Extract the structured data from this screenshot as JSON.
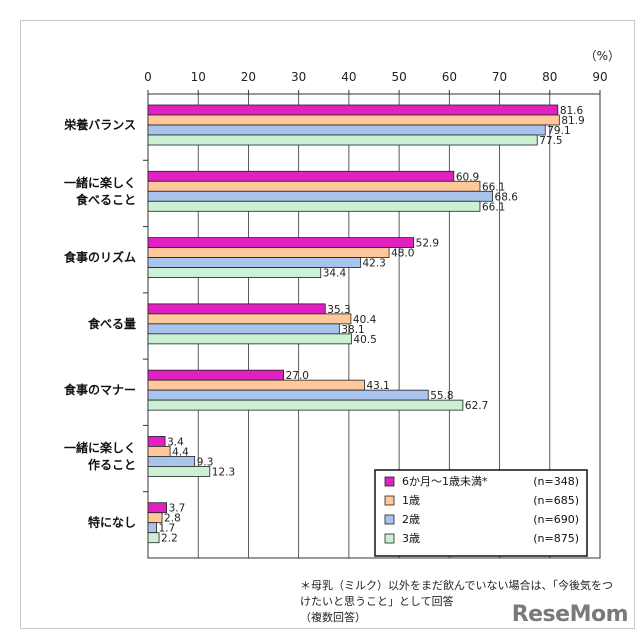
{
  "chart_data": {
    "type": "bar",
    "orientation": "horizontal",
    "unit_label": "（%）",
    "xlim": [
      0,
      90
    ],
    "xticks": [
      "0",
      "10",
      "20",
      "30",
      "40",
      "50",
      "60",
      "70",
      "80",
      "90"
    ],
    "grid": true,
    "legend_position": "bottom-right",
    "categories": [
      [
        "栄養バランス"
      ],
      [
        "一緒に楽しく",
        "食べること"
      ],
      [
        "食事のリズム"
      ],
      [
        "食べる量"
      ],
      [
        "食事のマナー"
      ],
      [
        "一緒に楽しく",
        "作ること"
      ],
      [
        "特になし"
      ]
    ],
    "series": [
      {
        "name": "6か月～1歳未満*",
        "n": "(n=348)",
        "color": "#e020c0",
        "values": [
          81.6,
          60.9,
          52.9,
          35.3,
          27.0,
          3.4,
          3.7
        ],
        "labels": [
          "81.6",
          "60.9",
          "52.9",
          "35.3",
          "27.0",
          "3.4",
          "3.7"
        ]
      },
      {
        "name": "1歳",
        "n": "(n=685)",
        "color": "#ffc89a",
        "values": [
          81.9,
          66.1,
          48.0,
          40.4,
          43.1,
          4.4,
          2.8
        ],
        "labels": [
          "81.9",
          "66.1",
          "48.0",
          "40.4",
          "43.1",
          "4.4",
          "2.8"
        ]
      },
      {
        "name": "2歳",
        "n": "(n=690)",
        "color": "#a8c4ec",
        "values": [
          79.1,
          68.6,
          42.3,
          38.1,
          55.8,
          9.3,
          1.7
        ],
        "labels": [
          "79.1",
          "68.6",
          "42.3",
          "38.1",
          "55.8",
          "9.3",
          "1.7"
        ]
      },
      {
        "name": "3歳",
        "n": "(n=875)",
        "color": "#ccf0d4",
        "values": [
          77.5,
          66.1,
          34.4,
          40.5,
          62.7,
          12.3,
          2.2
        ],
        "labels": [
          "77.5",
          "66.1",
          "34.4",
          "40.5",
          "62.7",
          "12.3",
          "2.2"
        ]
      }
    ]
  },
  "notes": [
    "＊母乳（ミルク）以外をまだ飲んでいない場合は、「今後気をつ",
    "けたいと思うこと」として回答",
    "（複数回答）"
  ],
  "watermark": "ReseMom"
}
